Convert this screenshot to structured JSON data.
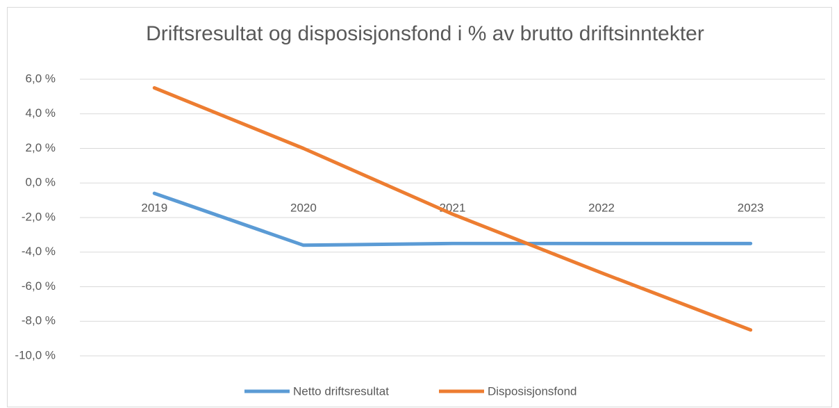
{
  "chart_data": {
    "type": "line",
    "title": "Driftsresultat og disposisjonsfond i % av brutto driftsinntekter",
    "categories": [
      "2019",
      "2020",
      "2021",
      "2022",
      "2023"
    ],
    "series": [
      {
        "name": "Netto driftsresultat",
        "color": "#5b9bd5",
        "values": [
          -0.6,
          -3.6,
          -3.5,
          -3.5,
          -3.5
        ]
      },
      {
        "name": "Disposisjonsfond",
        "color": "#ed7d31",
        "values": [
          5.5,
          2.0,
          -1.8,
          -5.2,
          -8.5
        ]
      }
    ],
    "ylim": [
      -10,
      6
    ],
    "yticks": [
      {
        "value": -10,
        "label": "-10,0 %"
      },
      {
        "value": -8,
        "label": "-8,0 %"
      },
      {
        "value": -6,
        "label": "-6,0 %"
      },
      {
        "value": -4,
        "label": "-4,0 %"
      },
      {
        "value": -2,
        "label": "-2,0 %"
      },
      {
        "value": 0,
        "label": "0,0 %"
      },
      {
        "value": 2,
        "label": "2,0 %"
      },
      {
        "value": 4,
        "label": "4,0 %"
      },
      {
        "value": 6,
        "label": "6,0 %"
      }
    ],
    "grid": true,
    "legend": "bottom"
  }
}
